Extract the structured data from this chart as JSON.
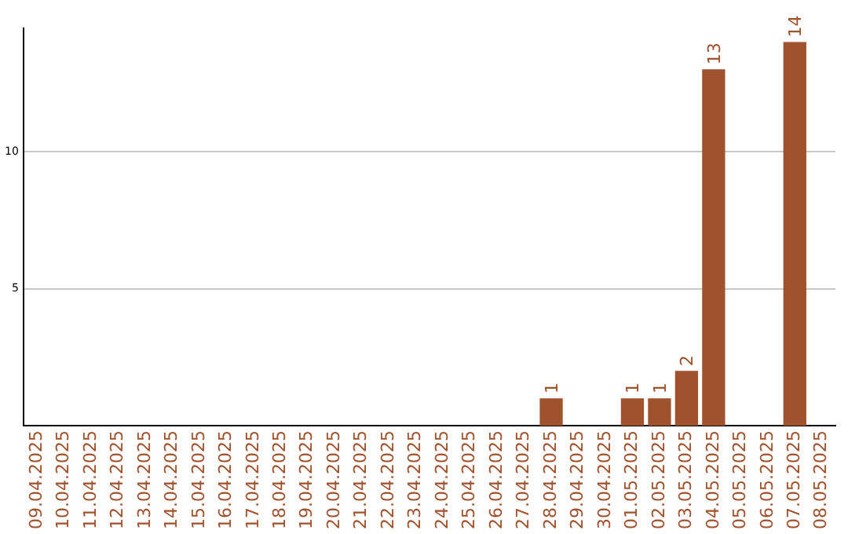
{
  "chart_data": {
    "type": "bar",
    "categories": [
      "09.04.2025",
      "10.04.2025",
      "11.04.2025",
      "12.04.2025",
      "13.04.2025",
      "14.04.2025",
      "15.04.2025",
      "16.04.2025",
      "17.04.2025",
      "18.04.2025",
      "19.04.2025",
      "20.04.2025",
      "21.04.2025",
      "22.04.2025",
      "23.04.2025",
      "24.04.2025",
      "25.04.2025",
      "26.04.2025",
      "27.04.2025",
      "28.04.2025",
      "29.04.2025",
      "30.04.2025",
      "01.05.2025",
      "02.05.2025",
      "03.05.2025",
      "04.05.2025",
      "05.05.2025",
      "06.05.2025",
      "07.05.2025",
      "08.05.2025"
    ],
    "values": [
      0,
      0,
      0,
      0,
      0,
      0,
      0,
      0,
      0,
      0,
      0,
      0,
      0,
      0,
      0,
      0,
      0,
      0,
      0,
      1,
      0,
      0,
      1,
      1,
      2,
      13,
      0,
      0,
      14,
      0
    ],
    "value_labels": [
      null,
      null,
      null,
      null,
      null,
      null,
      null,
      null,
      null,
      null,
      null,
      null,
      null,
      null,
      null,
      null,
      null,
      null,
      null,
      "1",
      null,
      null,
      "1",
      "1",
      "2",
      "13",
      null,
      null,
      "14",
      null
    ],
    "color": "#a0522d",
    "ylim": [
      0,
      14.5
    ],
    "yticks": [
      5,
      10
    ],
    "grid": "y",
    "legend": false
  }
}
